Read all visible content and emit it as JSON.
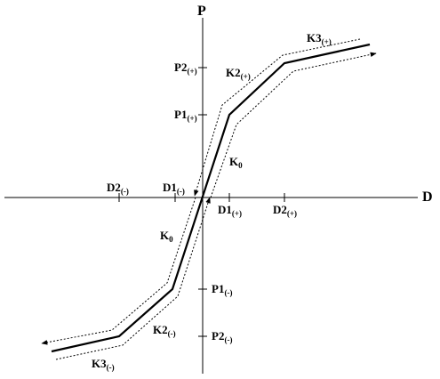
{
  "axes": {
    "x_label": "D",
    "y_label": "P"
  },
  "labels": {
    "d1_pos": {
      "main": "D1",
      "sub": "(+)"
    },
    "d2_pos": {
      "main": "D2",
      "sub": "(+)"
    },
    "d1_neg": {
      "main": "D1",
      "sub": "(-)"
    },
    "d2_neg": {
      "main": "D2",
      "sub": "(-)"
    },
    "p1_pos": {
      "main": "P1",
      "sub": "(+)"
    },
    "p2_pos": {
      "main": "P2",
      "sub": "(+)"
    },
    "p1_neg": {
      "main": "P1",
      "sub": "(-)"
    },
    "p2_neg": {
      "main": "P2",
      "sub": "(-)"
    },
    "k0_upper": {
      "main": "K",
      "sub": "0"
    },
    "k0_lower": {
      "main": "K",
      "sub": "0"
    },
    "k2_pos": {
      "main": "K2",
      "sub": "(+)"
    },
    "k3_pos": {
      "main": "K3",
      "sub": "(+)"
    },
    "k2_neg": {
      "main": "K2",
      "sub": "(-)"
    },
    "k3_neg": {
      "main": "K3",
      "sub": "(-)"
    }
  }
}
